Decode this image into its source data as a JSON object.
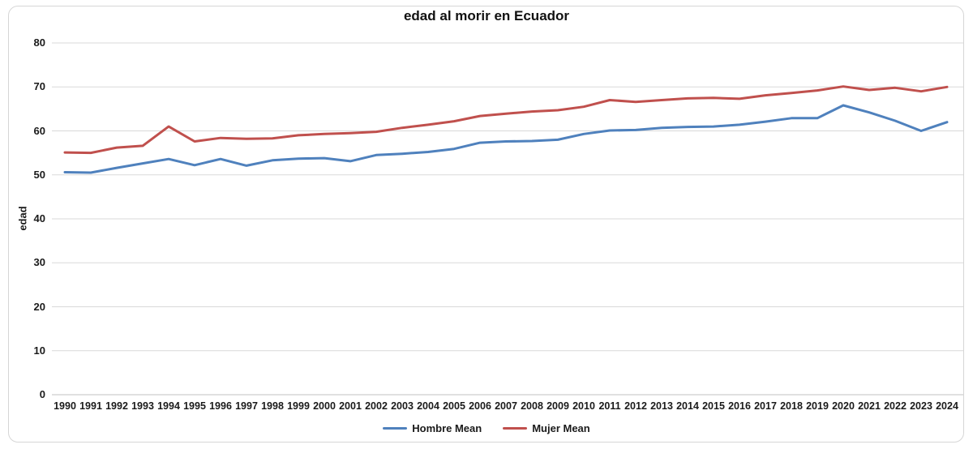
{
  "chart_data": {
    "type": "line",
    "title": "edad al morir en Ecuador",
    "xlabel": "",
    "ylabel": "edad",
    "ylim": [
      0,
      80
    ],
    "yticks": [
      0,
      10,
      20,
      30,
      40,
      50,
      60,
      70,
      80
    ],
    "grid": true,
    "legend_position": "bottom",
    "x": [
      1990,
      1991,
      1992,
      1993,
      1994,
      1995,
      1996,
      1997,
      1998,
      1999,
      2000,
      2001,
      2002,
      2003,
      2004,
      2005,
      2006,
      2007,
      2008,
      2009,
      2010,
      2011,
      2012,
      2013,
      2014,
      2015,
      2016,
      2017,
      2018,
      2019,
      2020,
      2021,
      2022,
      2023,
      2024
    ],
    "series": [
      {
        "name": "Hombre Mean",
        "color": "#4F81BD",
        "values": [
          50.6,
          50.5,
          51.6,
          52.6,
          53.6,
          52.2,
          53.6,
          52.1,
          53.3,
          53.7,
          53.8,
          53.1,
          54.5,
          54.8,
          55.2,
          55.9,
          57.3,
          57.6,
          57.7,
          58.0,
          59.3,
          60.1,
          60.2,
          60.7,
          60.9,
          61.0,
          61.4,
          62.1,
          62.9,
          62.9,
          65.8,
          64.2,
          62.3,
          60.0,
          62.0
        ]
      },
      {
        "name": "Mujer Mean",
        "color": "#C0504D",
        "values": [
          55.1,
          55.0,
          56.2,
          56.6,
          61.0,
          57.6,
          58.4,
          58.2,
          58.3,
          59.0,
          59.3,
          59.5,
          59.8,
          60.7,
          61.4,
          62.2,
          63.4,
          63.9,
          64.4,
          64.7,
          65.5,
          67.0,
          66.6,
          67.0,
          67.4,
          67.5,
          67.3,
          68.1,
          68.6,
          69.2,
          70.1,
          69.3,
          69.8,
          69.0,
          70.0
        ]
      }
    ],
    "colors": {
      "gridline": "#D9D9D9",
      "axis_line": "#C0C0C0",
      "text": "#1a1a1a"
    }
  }
}
